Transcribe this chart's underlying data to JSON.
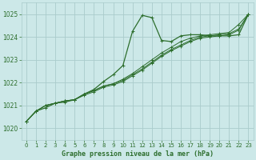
{
  "title": "Graphe pression niveau de la mer (hPa)",
  "background_color": "#cce8e8",
  "grid_color": "#aacccc",
  "line_color": "#2d6e2d",
  "ylim": [
    1019.5,
    1025.5
  ],
  "xlim": [
    -0.5,
    23.5
  ],
  "yticks": [
    1020,
    1021,
    1022,
    1023,
    1024,
    1025
  ],
  "xticks": [
    0,
    1,
    2,
    3,
    4,
    5,
    6,
    7,
    8,
    9,
    10,
    11,
    12,
    13,
    14,
    15,
    16,
    17,
    18,
    19,
    20,
    21,
    22,
    23
  ],
  "line1_x": [
    0,
    1,
    2,
    3,
    4,
    5,
    6,
    7,
    8,
    9,
    10,
    11,
    12,
    13,
    14,
    15,
    16,
    17,
    18,
    19,
    20,
    21,
    22,
    23
  ],
  "line1_y": [
    1020.3,
    1020.75,
    1020.9,
    1021.1,
    1021.15,
    1021.25,
    1021.5,
    1021.7,
    1022.05,
    1022.35,
    1022.75,
    1024.25,
    1024.95,
    1024.85,
    1023.85,
    1023.8,
    1024.05,
    1024.1,
    1024.1,
    1024.05,
    1024.05,
    1024.05,
    1024.1,
    1025.0
  ],
  "line2_x": [
    0,
    1,
    2,
    3,
    4,
    5,
    6,
    7,
    8,
    9,
    10,
    11,
    12,
    13,
    14,
    15,
    16,
    17,
    18,
    19,
    20,
    21,
    22,
    23
  ],
  "line2_y": [
    1020.3,
    1020.75,
    1021.0,
    1021.1,
    1021.2,
    1021.25,
    1021.5,
    1021.65,
    1021.85,
    1021.95,
    1022.15,
    1022.4,
    1022.7,
    1023.0,
    1023.3,
    1023.55,
    1023.8,
    1023.95,
    1024.05,
    1024.1,
    1024.15,
    1024.2,
    1024.55,
    1025.0
  ],
  "line3_x": [
    0,
    1,
    2,
    3,
    4,
    5,
    6,
    7,
    8,
    9,
    10,
    11,
    12,
    13,
    14,
    15,
    16,
    17,
    18,
    19,
    20,
    21,
    22,
    23
  ],
  "line3_y": [
    1020.3,
    1020.75,
    1021.0,
    1021.1,
    1021.2,
    1021.25,
    1021.5,
    1021.65,
    1021.85,
    1021.95,
    1022.1,
    1022.35,
    1022.6,
    1022.9,
    1023.2,
    1023.45,
    1023.65,
    1023.85,
    1024.0,
    1024.05,
    1024.1,
    1024.15,
    1024.35,
    1025.0
  ],
  "line4_x": [
    0,
    1,
    2,
    3,
    4,
    5,
    6,
    7,
    8,
    9,
    10,
    11,
    12,
    13,
    14,
    15,
    16,
    17,
    18,
    19,
    20,
    21,
    22,
    23
  ],
  "line4_y": [
    1020.3,
    1020.75,
    1021.0,
    1021.1,
    1021.2,
    1021.25,
    1021.45,
    1021.6,
    1021.8,
    1021.9,
    1022.05,
    1022.3,
    1022.55,
    1022.85,
    1023.15,
    1023.4,
    1023.6,
    1023.8,
    1023.95,
    1024.0,
    1024.05,
    1024.1,
    1024.3,
    1025.0
  ]
}
